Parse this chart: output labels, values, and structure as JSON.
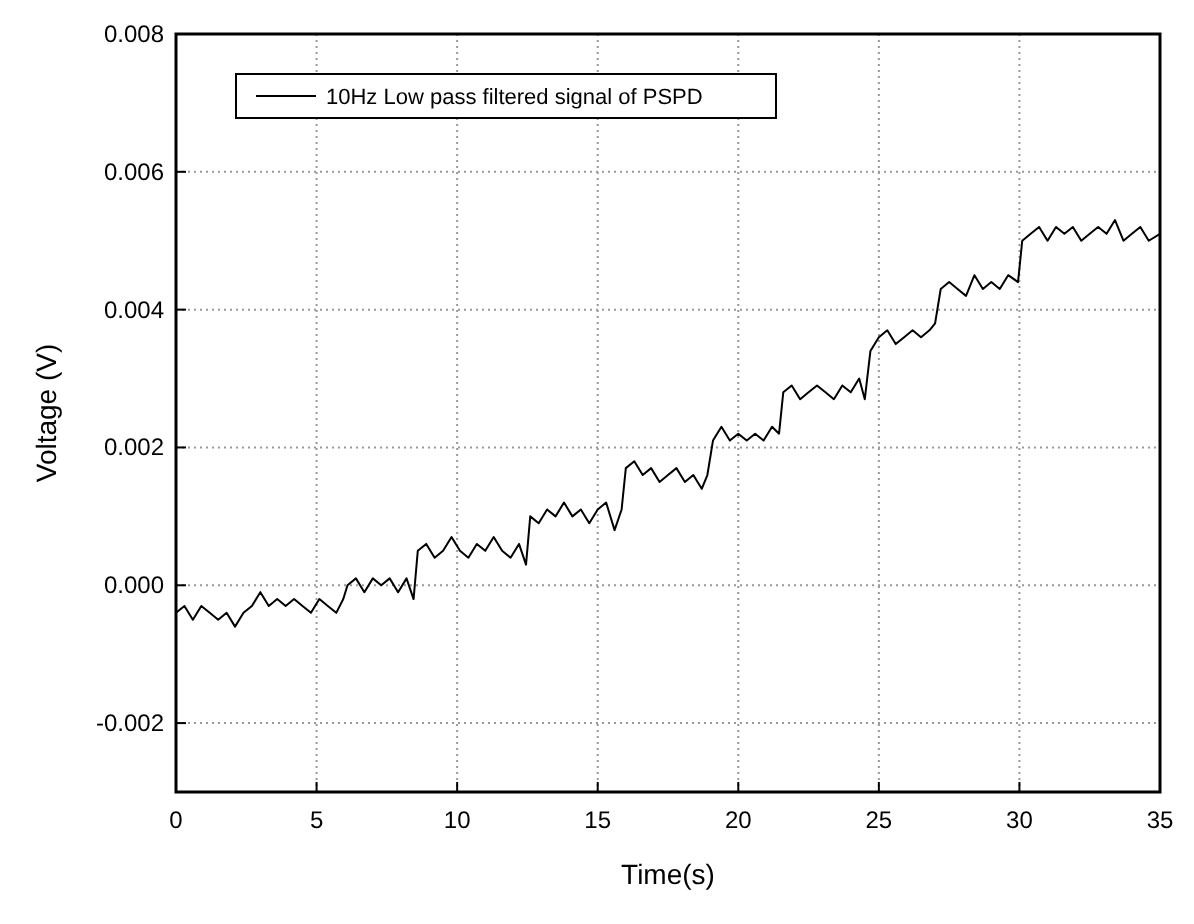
{
  "chart_data": {
    "type": "line",
    "xlabel": "Time(s)",
    "ylabel": "Voltage (V)",
    "xlim": [
      0,
      35
    ],
    "ylim": [
      -0.003,
      0.008
    ],
    "xticks": [
      0,
      5,
      10,
      15,
      20,
      25,
      30,
      35
    ],
    "yticks": [
      {
        "value": -0.002,
        "label": "-0.002"
      },
      {
        "value": 0,
        "label": "0.000"
      },
      {
        "value": 0.002,
        "label": "0.002"
      },
      {
        "value": 0.004,
        "label": "0.004"
      },
      {
        "value": 0.006,
        "label": "0.006"
      },
      {
        "value": 0.008,
        "label": "0.008"
      }
    ],
    "grid": true,
    "legend": "top left",
    "marker": "none",
    "line_style": "solid",
    "series": [
      {
        "name": "10Hz Low pass filtered signal of PSPD",
        "color": "#000000",
        "x": [
          0,
          0.3,
          0.6,
          0.9,
          1.2,
          1.5,
          1.8,
          2.1,
          2.4,
          2.7,
          3.0,
          3.3,
          3.6,
          3.9,
          4.2,
          4.5,
          4.8,
          5.1,
          5.4,
          5.7,
          5.95,
          6.1,
          6.4,
          6.7,
          7.0,
          7.3,
          7.6,
          7.9,
          8.2,
          8.45,
          8.6,
          8.9,
          9.2,
          9.5,
          9.8,
          10.1,
          10.4,
          10.7,
          11.0,
          11.3,
          11.6,
          11.9,
          12.2,
          12.45,
          12.6,
          12.9,
          13.2,
          13.5,
          13.8,
          14.1,
          14.4,
          14.7,
          15.0,
          15.3,
          15.6,
          15.85,
          16.0,
          16.3,
          16.6,
          16.9,
          17.2,
          17.5,
          17.8,
          18.1,
          18.4,
          18.7,
          18.9,
          19.1,
          19.4,
          19.7,
          20.0,
          20.3,
          20.6,
          20.9,
          21.2,
          21.45,
          21.6,
          21.9,
          22.2,
          22.5,
          22.8,
          23.1,
          23.4,
          23.7,
          24.0,
          24.3,
          24.5,
          24.7,
          25.0,
          25.3,
          25.6,
          25.9,
          26.2,
          26.5,
          26.8,
          27.0,
          27.2,
          27.5,
          27.8,
          28.1,
          28.4,
          28.7,
          29.0,
          29.3,
          29.6,
          29.95,
          30.1,
          30.4,
          30.7,
          31.0,
          31.3,
          31.6,
          31.9,
          32.2,
          32.5,
          32.8,
          33.1,
          33.4,
          33.7,
          34.0,
          34.3,
          34.6,
          35.0
        ],
        "values": [
          -0.0004,
          -0.0003,
          -0.0005,
          -0.0003,
          -0.0004,
          -0.0005,
          -0.0004,
          -0.0006,
          -0.0004,
          -0.0003,
          -0.0001,
          -0.0003,
          -0.0002,
          -0.0003,
          -0.0002,
          -0.0003,
          -0.0004,
          -0.0002,
          -0.0003,
          -0.0004,
          -0.0002,
          0.0,
          0.0001,
          -0.0001,
          0.0001,
          0.0,
          0.0001,
          -0.0001,
          0.0001,
          -0.0002,
          0.0005,
          0.0006,
          0.0004,
          0.0005,
          0.0007,
          0.0005,
          0.0004,
          0.0006,
          0.0005,
          0.0007,
          0.0005,
          0.0004,
          0.0006,
          0.0003,
          0.001,
          0.0009,
          0.0011,
          0.001,
          0.0012,
          0.001,
          0.0011,
          0.0009,
          0.0011,
          0.0012,
          0.0008,
          0.0011,
          0.0017,
          0.0018,
          0.0016,
          0.0017,
          0.0015,
          0.0016,
          0.0017,
          0.0015,
          0.0016,
          0.0014,
          0.0016,
          0.0021,
          0.0023,
          0.0021,
          0.0022,
          0.0021,
          0.0022,
          0.0021,
          0.0023,
          0.0022,
          0.0028,
          0.0029,
          0.0027,
          0.0028,
          0.0029,
          0.0028,
          0.0027,
          0.0029,
          0.0028,
          0.003,
          0.0027,
          0.0034,
          0.0036,
          0.0037,
          0.0035,
          0.0036,
          0.0037,
          0.0036,
          0.0037,
          0.0038,
          0.0043,
          0.0044,
          0.0043,
          0.0042,
          0.0045,
          0.0043,
          0.0044,
          0.0043,
          0.0045,
          0.0044,
          0.005,
          0.0051,
          0.0052,
          0.005,
          0.0052,
          0.0051,
          0.0052,
          0.005,
          0.0051,
          0.0052,
          0.0051,
          0.0053,
          0.005,
          0.0051,
          0.0052,
          0.005,
          0.0051
        ]
      }
    ]
  }
}
